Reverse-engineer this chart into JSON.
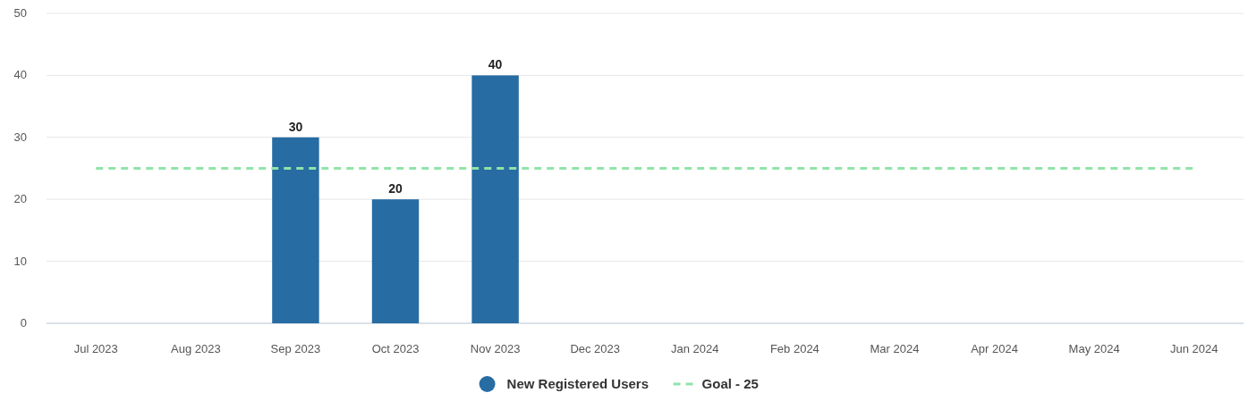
{
  "chart_data": {
    "type": "bar",
    "categories": [
      "Jul 2023",
      "Aug 2023",
      "Sep 2023",
      "Oct 2023",
      "Nov 2023",
      "Dec 2023",
      "Jan 2024",
      "Feb 2024",
      "Mar 2024",
      "Apr 2024",
      "May 2024",
      "Jun 2024"
    ],
    "series": [
      {
        "name": "New Registered Users",
        "color": "#276ca3",
        "values": [
          null,
          null,
          30,
          20,
          40,
          null,
          null,
          null,
          null,
          null,
          null,
          null
        ],
        "value_labels": [
          null,
          null,
          "30",
          "20",
          "40",
          null,
          null,
          null,
          null,
          null,
          null,
          null
        ]
      },
      {
        "name": "Goal - 25",
        "type": "line",
        "color": "#90e4a8",
        "line_style": "dashed",
        "marker": "none",
        "values": [
          25,
          25,
          25,
          25,
          25,
          25,
          25,
          25,
          25,
          25,
          25,
          25
        ]
      }
    ],
    "ylim": [
      0,
      50
    ],
    "yticks": [
      0,
      10,
      20,
      30,
      40,
      50
    ],
    "grid": "y",
    "legend": "bottom"
  }
}
